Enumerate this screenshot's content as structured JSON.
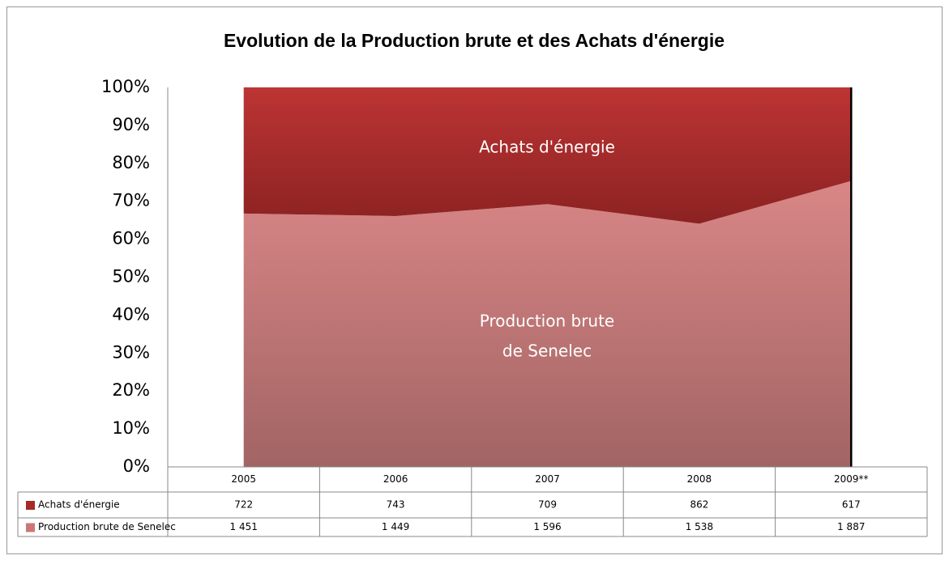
{
  "chart_data": {
    "type": "stacked-area-100",
    "title": "Evolution de la Production brute et des Achats d'énergie",
    "categories": [
      "2005",
      "2006",
      "2007",
      "2008",
      "2009**"
    ],
    "series": [
      {
        "name": "Achats d'énergie",
        "color": "#a52a2a",
        "values": [
          722,
          743,
          709,
          862,
          617
        ]
      },
      {
        "name": "Production brute de Senelec",
        "color": "#cc7777",
        "values": [
          1451,
          1449,
          1596,
          1538,
          1887
        ],
        "value_labels": [
          "1 451",
          "1 449",
          "1 596",
          "1 538",
          "1 887"
        ]
      }
    ],
    "annotations": [
      "Achats d'énergie",
      "Production brute",
      "de Senelec"
    ],
    "ylim": [
      0,
      100
    ],
    "yticks": [
      {
        "value": 0,
        "label": "0%"
      },
      {
        "value": 10,
        "label": "10%"
      },
      {
        "value": 20,
        "label": "20%"
      },
      {
        "value": 30,
        "label": "30%"
      },
      {
        "value": 40,
        "label": "40%"
      },
      {
        "value": 50,
        "label": "50%"
      },
      {
        "value": 60,
        "label": "60%"
      },
      {
        "value": 70,
        "label": "70%"
      },
      {
        "value": 80,
        "label": "80%"
      },
      {
        "value": 90,
        "label": "90%"
      },
      {
        "value": 100,
        "label": "100%"
      }
    ]
  }
}
